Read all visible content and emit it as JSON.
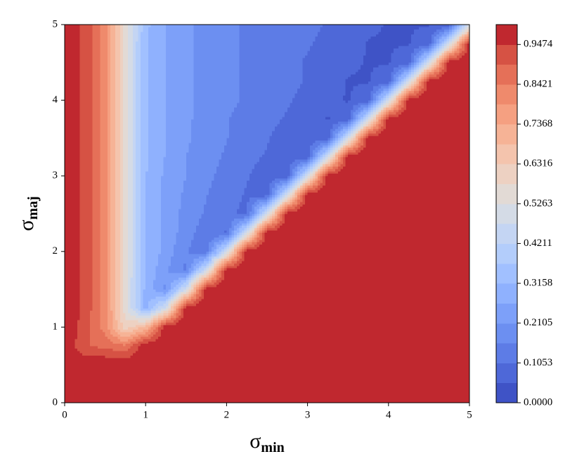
{
  "chart_data": {
    "type": "contourf",
    "xlabel": {
      "base": "σ",
      "sub": "min"
    },
    "ylabel": {
      "base": "σ",
      "sub": "maj"
    },
    "xlim": [
      0,
      5
    ],
    "ylim": [
      0,
      5
    ],
    "xticks": [
      0,
      1,
      2,
      3,
      4,
      5
    ],
    "yticks": [
      0,
      1,
      2,
      3,
      4,
      5
    ],
    "x": [
      0,
      0.25,
      0.5,
      0.75,
      1,
      1.25,
      1.5,
      1.75,
      2,
      2.25,
      2.5,
      2.75,
      3,
      3.25,
      3.5,
      3.75,
      4,
      4.25,
      4.5,
      4.75,
      5
    ],
    "y": [
      0,
      0.25,
      0.5,
      0.75,
      1,
      1.25,
      1.5,
      1.75,
      2,
      2.25,
      2.5,
      2.75,
      3,
      3.25,
      3.5,
      3.75,
      4,
      4.25,
      4.5,
      4.75,
      5
    ],
    "z": [
      [
        1,
        1,
        1,
        1,
        1,
        1,
        1,
        1,
        1,
        1,
        1,
        1,
        1,
        1,
        1,
        1,
        1,
        1,
        1,
        1,
        1
      ],
      [
        1,
        1,
        1,
        1,
        1,
        1,
        1,
        1,
        1,
        1,
        1,
        1,
        1,
        1,
        1,
        1,
        1,
        1,
        1,
        1,
        1
      ],
      [
        1,
        1,
        1,
        1,
        1,
        1,
        1,
        1,
        1,
        1,
        1,
        1,
        1,
        1,
        1,
        1,
        1,
        1,
        1,
        1,
        1
      ],
      [
        1,
        0.9,
        0.88,
        0.85,
        1,
        1,
        1,
        1,
        1,
        1,
        1,
        1,
        1,
        1,
        1,
        1,
        1,
        1,
        1,
        1,
        1
      ],
      [
        1,
        0.92,
        0.82,
        0.6,
        0.7,
        1,
        1,
        1,
        1,
        1,
        1,
        1,
        1,
        1,
        1,
        1,
        1,
        1,
        1,
        1,
        1
      ],
      [
        1,
        0.93,
        0.82,
        0.55,
        0.3,
        0.5,
        1,
        1,
        1,
        1,
        1,
        1,
        1,
        1,
        1,
        1,
        1,
        1,
        1,
        1,
        1
      ],
      [
        1,
        0.93,
        0.82,
        0.55,
        0.3,
        0.2,
        0.5,
        1,
        1,
        1,
        1,
        1,
        1,
        1,
        1,
        1,
        1,
        1,
        1,
        1,
        1
      ],
      [
        1,
        0.93,
        0.82,
        0.55,
        0.31,
        0.22,
        0.15,
        0.5,
        1,
        1,
        1,
        1,
        1,
        1,
        1,
        1,
        1,
        1,
        1,
        1,
        1
      ],
      [
        1,
        0.93,
        0.82,
        0.55,
        0.32,
        0.24,
        0.16,
        0.12,
        0.5,
        1,
        1,
        1,
        1,
        1,
        1,
        1,
        1,
        1,
        1,
        1,
        1
      ],
      [
        1,
        0.93,
        0.82,
        0.55,
        0.32,
        0.25,
        0.18,
        0.13,
        0.1,
        0.5,
        1,
        1,
        1,
        1,
        1,
        1,
        1,
        1,
        1,
        1,
        1
      ],
      [
        1,
        0.93,
        0.82,
        0.55,
        0.32,
        0.25,
        0.19,
        0.15,
        0.12,
        0.09,
        0.5,
        1,
        1,
        1,
        1,
        1,
        1,
        1,
        1,
        1,
        1
      ],
      [
        1,
        0.93,
        0.82,
        0.55,
        0.32,
        0.25,
        0.2,
        0.16,
        0.13,
        0.1,
        0.08,
        0.5,
        1,
        1,
        1,
        1,
        1,
        1,
        1,
        1,
        1
      ],
      [
        1,
        0.93,
        0.82,
        0.55,
        0.32,
        0.25,
        0.21,
        0.17,
        0.14,
        0.11,
        0.08,
        0.08,
        0.5,
        1,
        1,
        1,
        1,
        1,
        1,
        1,
        1
      ],
      [
        1,
        0.93,
        0.82,
        0.55,
        0.32,
        0.26,
        0.21,
        0.18,
        0.15,
        0.12,
        0.1,
        0.07,
        0.08,
        0.5,
        1,
        1,
        1,
        1,
        1,
        1,
        1
      ],
      [
        1,
        0.93,
        0.82,
        0.55,
        0.32,
        0.26,
        0.22,
        0.18,
        0.16,
        0.13,
        0.11,
        0.08,
        0.06,
        0.08,
        0.5,
        1,
        1,
        1,
        1,
        1,
        1
      ],
      [
        1,
        0.93,
        0.82,
        0.55,
        0.32,
        0.26,
        0.22,
        0.19,
        0.16,
        0.14,
        0.12,
        0.1,
        0.07,
        0.05,
        0.08,
        0.5,
        1,
        1,
        1,
        1,
        1
      ],
      [
        1,
        0.93,
        0.82,
        0.55,
        0.32,
        0.26,
        0.22,
        0.19,
        0.17,
        0.15,
        0.13,
        0.11,
        0.09,
        0.06,
        0.05,
        0.08,
        0.5,
        1,
        1,
        1,
        1
      ],
      [
        1,
        0.93,
        0.82,
        0.55,
        0.32,
        0.26,
        0.22,
        0.19,
        0.17,
        0.15,
        0.13,
        0.12,
        0.1,
        0.08,
        0.05,
        0.05,
        0.08,
        0.5,
        1,
        1,
        1
      ],
      [
        1,
        0.93,
        0.82,
        0.55,
        0.32,
        0.26,
        0.22,
        0.19,
        0.17,
        0.15,
        0.14,
        0.12,
        0.1,
        0.08,
        0.06,
        0.05,
        0.05,
        0.08,
        0.5,
        1,
        1
      ],
      [
        1,
        0.93,
        0.82,
        0.55,
        0.32,
        0.26,
        0.22,
        0.19,
        0.17,
        0.15,
        0.14,
        0.12,
        0.11,
        0.09,
        0.07,
        0.05,
        0.05,
        0.05,
        0.08,
        0.5,
        1
      ],
      [
        1,
        0.93,
        0.82,
        0.55,
        0.33,
        0.26,
        0.22,
        0.19,
        0.17,
        0.15,
        0.14,
        0.13,
        0.12,
        0.1,
        0.08,
        0.06,
        0.05,
        0.05,
        0.05,
        0.06,
        0.5
      ]
    ],
    "levels": [
      0,
      0.0526,
      0.1053,
      0.1579,
      0.2105,
      0.2632,
      0.3158,
      0.3684,
      0.4211,
      0.4737,
      0.5263,
      0.5789,
      0.6316,
      0.6842,
      0.7368,
      0.7895,
      0.8421,
      0.8947,
      0.9474,
      1.0
    ],
    "colors": [
      "#3f53c6",
      "#4e68d8",
      "#5d7ce6",
      "#6c8ff1",
      "#7da0f9",
      "#8fb1fe",
      "#a1c0ff",
      "#b3cdfb",
      "#c4d5f3",
      "#d4dbe6",
      "#e2dad5",
      "#edd1c2",
      "#f4c4ad",
      "#f6b396",
      "#f5a081",
      "#ef8a6c",
      "#e57058",
      "#d65244",
      "#c0282f"
    ],
    "colorbar_ticks": [
      {
        "value": 0,
        "label": "0.0000"
      },
      0.1053,
      0.2105,
      0.3158,
      0.4211,
      0.5263,
      0.6316,
      0.7368,
      0.8421,
      0.9474
    ]
  }
}
